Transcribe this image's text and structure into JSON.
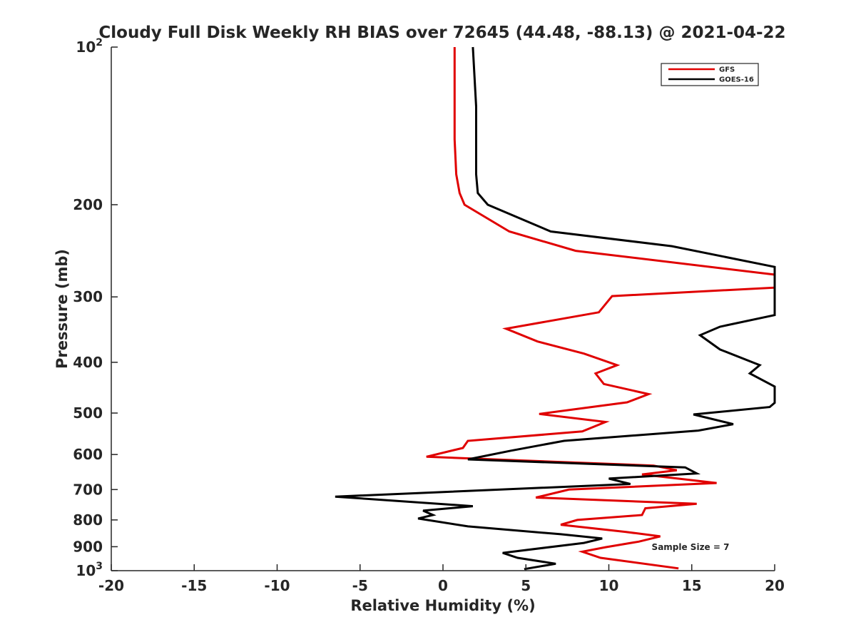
{
  "chart_data": {
    "type": "line",
    "title": "Cloudy Full Disk Weekly RH BIAS over 72645 (44.48, -88.13) @ 2021-04-22",
    "xlabel": "Relative Humidity (%)",
    "ylabel": "Pressure (mb)",
    "xlim": [
      -20,
      20
    ],
    "ylim": [
      100,
      1000
    ],
    "y_scale": "log",
    "y_reversed": true,
    "grid": false,
    "legend_position": "top-right",
    "x_ticks": [
      -20,
      -15,
      -10,
      -5,
      0,
      5,
      10,
      15,
      20
    ],
    "x_tick_labels": [
      "-20",
      "-15",
      "-10",
      "-5",
      "0",
      "5",
      "10",
      "15",
      "20"
    ],
    "y_ticks": [
      100,
      200,
      300,
      400,
      500,
      600,
      700,
      800,
      900,
      1000
    ],
    "y_tick_labels": [
      {
        "base": "10",
        "exp": "2"
      },
      {
        "base": "200",
        "exp": ""
      },
      {
        "base": "300",
        "exp": ""
      },
      {
        "base": "400",
        "exp": ""
      },
      {
        "base": "500",
        "exp": ""
      },
      {
        "base": "600",
        "exp": ""
      },
      {
        "base": "700",
        "exp": ""
      },
      {
        "base": "800",
        "exp": ""
      },
      {
        "base": "900",
        "exp": ""
      },
      {
        "base": "10",
        "exp": "3"
      }
    ],
    "annotation": "Sample Size = 7",
    "series": [
      {
        "name": "GFS",
        "color": "#e00000",
        "points": [
          [
            0.7,
            100
          ],
          [
            0.7,
            130
          ],
          [
            0.7,
            150
          ],
          [
            0.8,
            175
          ],
          [
            1.0,
            190
          ],
          [
            1.3,
            200
          ],
          [
            4.0,
            225
          ],
          [
            8.0,
            245
          ],
          [
            20.0,
            272
          ],
          [
            20.0,
            288
          ],
          [
            10.2,
            299
          ],
          [
            9.4,
            321
          ],
          [
            3.8,
            345
          ],
          [
            5.7,
            365
          ],
          [
            8.5,
            385
          ],
          [
            10.5,
            405
          ],
          [
            9.2,
            420
          ],
          [
            9.7,
            440
          ],
          [
            12.4,
            460
          ],
          [
            11.1,
            477
          ],
          [
            5.8,
            502
          ],
          [
            9.8,
            520
          ],
          [
            8.4,
            542
          ],
          [
            1.5,
            565
          ],
          [
            1.2,
            583
          ],
          [
            -1.0,
            606
          ],
          [
            12.7,
            630
          ],
          [
            14.1,
            643
          ],
          [
            12.0,
            655
          ],
          [
            16.5,
            680
          ],
          [
            7.6,
            700
          ],
          [
            5.6,
            725
          ],
          [
            15.3,
            745
          ],
          [
            12.2,
            760
          ],
          [
            12.0,
            783
          ],
          [
            8.1,
            800
          ],
          [
            7.1,
            817
          ],
          [
            11.0,
            843
          ],
          [
            13.1,
            860
          ],
          [
            11.8,
            880
          ],
          [
            9.8,
            902
          ],
          [
            8.4,
            920
          ],
          [
            9.5,
            945
          ],
          [
            14.2,
            990
          ]
        ]
      },
      {
        "name": "GOES-16",
        "color": "#000000",
        "points": [
          [
            1.8,
            100
          ],
          [
            2.0,
            130
          ],
          [
            2.0,
            150
          ],
          [
            2.0,
            175
          ],
          [
            2.1,
            190
          ],
          [
            2.7,
            200
          ],
          [
            6.5,
            225
          ],
          [
            13.8,
            240
          ],
          [
            20.0,
            263
          ],
          [
            20.0,
            325
          ],
          [
            16.7,
            342
          ],
          [
            15.5,
            355
          ],
          [
            16.7,
            378
          ],
          [
            19.1,
            405
          ],
          [
            18.5,
            420
          ],
          [
            20.0,
            445
          ],
          [
            20.0,
            478
          ],
          [
            19.7,
            487
          ],
          [
            15.1,
            503
          ],
          [
            17.5,
            525
          ],
          [
            15.4,
            540
          ],
          [
            7.3,
            565
          ],
          [
            4.1,
            590
          ],
          [
            1.5,
            613
          ],
          [
            14.6,
            635
          ],
          [
            15.3,
            652
          ],
          [
            10.0,
            667
          ],
          [
            11.3,
            683
          ],
          [
            -6.5,
            722
          ],
          [
            1.8,
            753
          ],
          [
            -1.2,
            768
          ],
          [
            -0.6,
            783
          ],
          [
            -1.5,
            795
          ],
          [
            1.5,
            823
          ],
          [
            7.1,
            852
          ],
          [
            9.6,
            868
          ],
          [
            8.5,
            885
          ],
          [
            3.6,
            925
          ],
          [
            4.5,
            945
          ],
          [
            6.8,
            970
          ],
          [
            4.9,
            993
          ]
        ]
      }
    ]
  }
}
